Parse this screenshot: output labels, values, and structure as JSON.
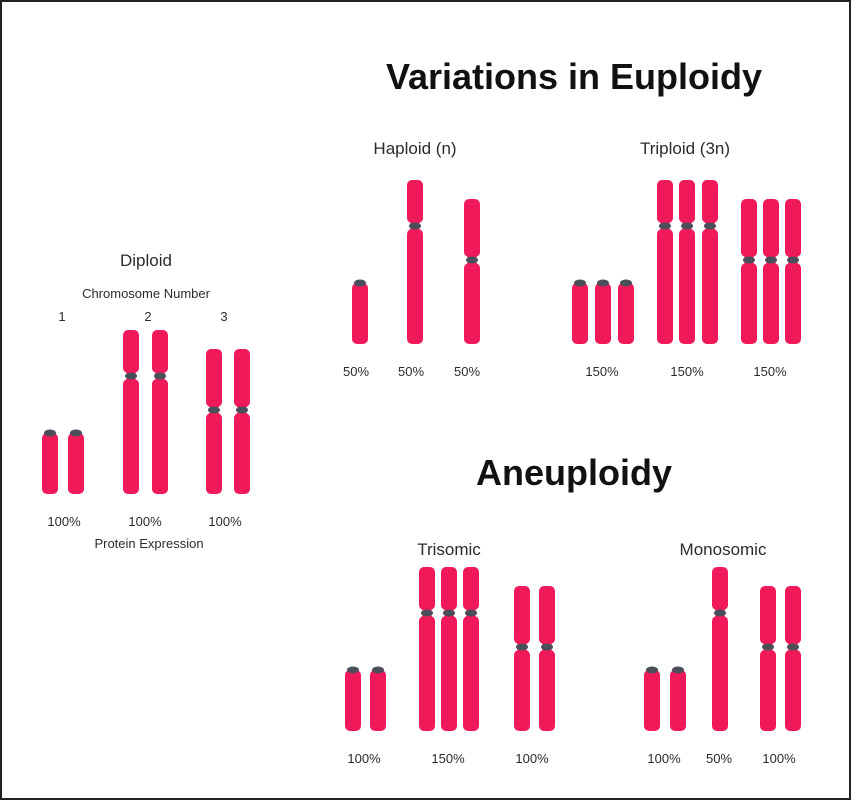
{
  "colors": {
    "chromosome": "#f0195a",
    "centromere": "#4a4f5a",
    "text": "#2b2b2b"
  },
  "titles": {
    "euploidy": "Variations in Euploidy",
    "aneuploidy": "Aneuploidy"
  },
  "diploid": {
    "title": "Diploid",
    "axis_label": "Chromosome Number",
    "numbers": [
      "1",
      "2",
      "3"
    ],
    "expression": [
      "100%",
      "100%",
      "100%"
    ],
    "expression_label": "Protein Expression"
  },
  "haploid": {
    "title": "Haploid (n)",
    "expression": [
      "50%",
      "50%",
      "50%"
    ]
  },
  "triploid": {
    "title": "Triploid (3n)",
    "expression": [
      "150%",
      "150%",
      "150%"
    ]
  },
  "trisomic": {
    "title": "Trisomic",
    "expression": [
      "100%",
      "150%",
      "100%"
    ]
  },
  "monosomic": {
    "title": "Monosomic",
    "expression": [
      "100%",
      "50%",
      "100%"
    ]
  }
}
